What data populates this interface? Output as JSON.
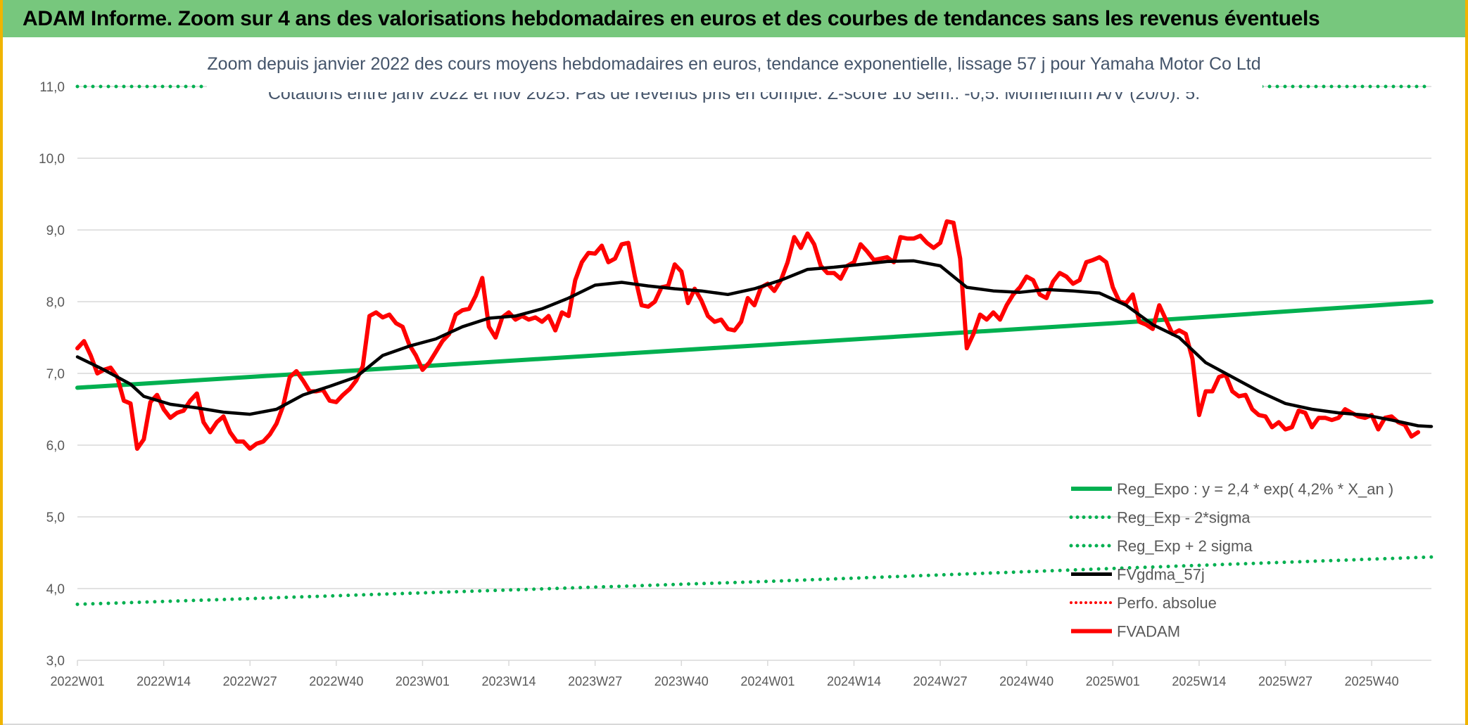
{
  "header": {
    "title": "ADAM Informe. Zoom sur 4 ans des valorisations hebdomadaires en euros et des courbes de tendances sans les revenus éventuels"
  },
  "colors": {
    "header_bg": "#77c77d",
    "trend": "#00b050",
    "smooth": "#000000",
    "price": "#ff0000",
    "title_text": "#44546a",
    "axis_text": "#595959",
    "grid": "#d9d9d9"
  },
  "chart_data": {
    "type": "line",
    "title": "Zoom depuis janvier 2022 des cours moyens hebdomadaires en euros, tendance exponentielle, lissage 57 j pour Yamaha Motor Co Ltd",
    "subtitle": "Cotations entre janv 2022 et nov 2025. Pas de revenus pris en compte. Z-score 10 sem.: -0,5. Momentum A/V (20/0): 5.",
    "xlabel": "",
    "ylabel": "",
    "ylim": [
      3.0,
      11.0
    ],
    "y_ticks": [
      "3,0",
      "4,0",
      "5,0",
      "6,0",
      "7,0",
      "8,0",
      "9,0",
      "10,0",
      "11,0"
    ],
    "x_ticks": [
      {
        "label": "2022W01",
        "week": 0
      },
      {
        "label": "2022W14",
        "week": 13
      },
      {
        "label": "2022W27",
        "week": 26
      },
      {
        "label": "2022W40",
        "week": 39
      },
      {
        "label": "2023W01",
        "week": 52
      },
      {
        "label": "2023W14",
        "week": 65
      },
      {
        "label": "2023W27",
        "week": 78
      },
      {
        "label": "2023W40",
        "week": 91
      },
      {
        "label": "2024W01",
        "week": 104
      },
      {
        "label": "2024W14",
        "week": 117
      },
      {
        "label": "2024W27",
        "week": 130
      },
      {
        "label": "2024W40",
        "week": 143
      },
      {
        "label": "2025W01",
        "week": 156
      },
      {
        "label": "2025W14",
        "week": 169
      },
      {
        "label": "2025W27",
        "week": 182
      },
      {
        "label": "2025W40",
        "week": 195
      }
    ],
    "x_range_weeks": [
      0,
      204
    ],
    "grid": "horizontal",
    "legend_position": "bottom-right",
    "legend": [
      {
        "label": "Reg_Expo : y = 2,4 * exp( 4,2% *  X_an )",
        "style": "solid-green"
      },
      {
        "label": "Reg_Exp - 2*sigma",
        "style": "dotted-green"
      },
      {
        "label": "Reg_Exp + 2 sigma",
        "style": "dotted-green"
      },
      {
        "label": "FVgdma_57j",
        "style": "solid-black"
      },
      {
        "label": "Perfo. absolue",
        "style": "dotted-red"
      },
      {
        "label": "FVADAM",
        "style": "solid-red"
      }
    ],
    "series": [
      {
        "name": "Reg_Expo : y = 2,4 * exp( 4,2% *  X_an )",
        "points": [
          [
            0,
            6.8
          ],
          [
            52,
            7.1
          ],
          [
            104,
            7.4
          ],
          [
            156,
            7.7
          ],
          [
            204,
            8.0
          ]
        ]
      },
      {
        "name": "Reg_Exp - 2*sigma",
        "points": [
          [
            0,
            3.78
          ],
          [
            52,
            3.94
          ],
          [
            104,
            4.1
          ],
          [
            156,
            4.28
          ],
          [
            204,
            4.44
          ]
        ]
      },
      {
        "name": "Reg_Exp + 2 sigma",
        "points": [
          [
            0,
            11.0
          ],
          [
            204,
            11.0
          ]
        ]
      },
      {
        "name": "FVgdma_57j",
        "points": [
          [
            0,
            7.23
          ],
          [
            4,
            7.05
          ],
          [
            8,
            6.85
          ],
          [
            10,
            6.68
          ],
          [
            14,
            6.57
          ],
          [
            18,
            6.52
          ],
          [
            22,
            6.46
          ],
          [
            26,
            6.43
          ],
          [
            30,
            6.5
          ],
          [
            34,
            6.7
          ],
          [
            38,
            6.82
          ],
          [
            42,
            6.95
          ],
          [
            46,
            7.25
          ],
          [
            50,
            7.38
          ],
          [
            54,
            7.48
          ],
          [
            58,
            7.65
          ],
          [
            62,
            7.77
          ],
          [
            66,
            7.8
          ],
          [
            70,
            7.9
          ],
          [
            74,
            8.05
          ],
          [
            78,
            8.23
          ],
          [
            82,
            8.27
          ],
          [
            86,
            8.22
          ],
          [
            90,
            8.18
          ],
          [
            94,
            8.15
          ],
          [
            98,
            8.1
          ],
          [
            102,
            8.18
          ],
          [
            106,
            8.3
          ],
          [
            110,
            8.45
          ],
          [
            114,
            8.48
          ],
          [
            118,
            8.52
          ],
          [
            122,
            8.56
          ],
          [
            126,
            8.57
          ],
          [
            130,
            8.5
          ],
          [
            134,
            8.2
          ],
          [
            138,
            8.15
          ],
          [
            142,
            8.13
          ],
          [
            146,
            8.17
          ],
          [
            150,
            8.15
          ],
          [
            154,
            8.12
          ],
          [
            158,
            7.95
          ],
          [
            162,
            7.68
          ],
          [
            166,
            7.5
          ],
          [
            170,
            7.15
          ],
          [
            174,
            6.95
          ],
          [
            178,
            6.75
          ],
          [
            182,
            6.58
          ],
          [
            186,
            6.5
          ],
          [
            190,
            6.45
          ],
          [
            194,
            6.42
          ],
          [
            198,
            6.35
          ],
          [
            202,
            6.27
          ],
          [
            204,
            6.26
          ]
        ]
      },
      {
        "name": "Perfo. absolue",
        "points": []
      },
      {
        "name": "FVADAM",
        "points": [
          [
            0,
            7.35
          ],
          [
            1,
            7.45
          ],
          [
            2,
            7.25
          ],
          [
            3,
            7.0
          ],
          [
            4,
            7.05
          ],
          [
            5,
            7.08
          ],
          [
            6,
            6.95
          ],
          [
            7,
            6.62
          ],
          [
            8,
            6.58
          ],
          [
            9,
            5.95
          ],
          [
            10,
            6.08
          ],
          [
            11,
            6.6
          ],
          [
            12,
            6.7
          ],
          [
            13,
            6.5
          ],
          [
            14,
            6.38
          ],
          [
            15,
            6.45
          ],
          [
            16,
            6.48
          ],
          [
            17,
            6.62
          ],
          [
            18,
            6.72
          ],
          [
            19,
            6.32
          ],
          [
            20,
            6.18
          ],
          [
            21,
            6.32
          ],
          [
            22,
            6.4
          ],
          [
            23,
            6.18
          ],
          [
            24,
            6.05
          ],
          [
            25,
            6.05
          ],
          [
            26,
            5.95
          ],
          [
            27,
            6.02
          ],
          [
            28,
            6.05
          ],
          [
            29,
            6.15
          ],
          [
            30,
            6.3
          ],
          [
            31,
            6.55
          ],
          [
            32,
            6.95
          ],
          [
            33,
            7.03
          ],
          [
            34,
            6.9
          ],
          [
            35,
            6.75
          ],
          [
            36,
            6.75
          ],
          [
            37,
            6.77
          ],
          [
            38,
            6.62
          ],
          [
            39,
            6.6
          ],
          [
            40,
            6.7
          ],
          [
            41,
            6.78
          ],
          [
            42,
            6.9
          ],
          [
            43,
            7.1
          ],
          [
            44,
            7.8
          ],
          [
            45,
            7.85
          ],
          [
            46,
            7.78
          ],
          [
            47,
            7.82
          ],
          [
            48,
            7.7
          ],
          [
            49,
            7.65
          ],
          [
            50,
            7.4
          ],
          [
            51,
            7.25
          ],
          [
            52,
            7.05
          ],
          [
            53,
            7.15
          ],
          [
            54,
            7.3
          ],
          [
            55,
            7.45
          ],
          [
            56,
            7.55
          ],
          [
            57,
            7.82
          ],
          [
            58,
            7.88
          ],
          [
            59,
            7.9
          ],
          [
            60,
            8.08
          ],
          [
            61,
            8.33
          ],
          [
            62,
            7.65
          ],
          [
            63,
            7.5
          ],
          [
            64,
            7.78
          ],
          [
            65,
            7.85
          ],
          [
            66,
            7.75
          ],
          [
            67,
            7.8
          ],
          [
            68,
            7.75
          ],
          [
            69,
            7.78
          ],
          [
            70,
            7.72
          ],
          [
            71,
            7.8
          ],
          [
            72,
            7.6
          ],
          [
            73,
            7.85
          ],
          [
            74,
            7.8
          ],
          [
            75,
            8.3
          ],
          [
            76,
            8.55
          ],
          [
            77,
            8.68
          ],
          [
            78,
            8.67
          ],
          [
            79,
            8.78
          ],
          [
            80,
            8.55
          ],
          [
            81,
            8.6
          ],
          [
            82,
            8.8
          ],
          [
            83,
            8.82
          ],
          [
            84,
            8.35
          ],
          [
            85,
            7.95
          ],
          [
            86,
            7.93
          ],
          [
            87,
            8.0
          ],
          [
            88,
            8.2
          ],
          [
            89,
            8.22
          ],
          [
            90,
            8.52
          ],
          [
            91,
            8.42
          ],
          [
            92,
            7.98
          ],
          [
            93,
            8.18
          ],
          [
            94,
            8.02
          ],
          [
            95,
            7.8
          ],
          [
            96,
            7.72
          ],
          [
            97,
            7.75
          ],
          [
            98,
            7.62
          ],
          [
            99,
            7.6
          ],
          [
            100,
            7.72
          ],
          [
            101,
            8.05
          ],
          [
            102,
            7.95
          ],
          [
            103,
            8.2
          ],
          [
            104,
            8.25
          ],
          [
            105,
            8.15
          ],
          [
            106,
            8.3
          ],
          [
            107,
            8.55
          ],
          [
            108,
            8.9
          ],
          [
            109,
            8.75
          ],
          [
            110,
            8.95
          ],
          [
            111,
            8.8
          ],
          [
            112,
            8.5
          ],
          [
            113,
            8.4
          ],
          [
            114,
            8.4
          ],
          [
            115,
            8.32
          ],
          [
            116,
            8.5
          ],
          [
            117,
            8.55
          ],
          [
            118,
            8.8
          ],
          [
            119,
            8.7
          ],
          [
            120,
            8.58
          ],
          [
            121,
            8.6
          ],
          [
            122,
            8.62
          ],
          [
            123,
            8.55
          ],
          [
            124,
            8.9
          ],
          [
            125,
            8.88
          ],
          [
            126,
            8.88
          ],
          [
            127,
            8.92
          ],
          [
            128,
            8.82
          ],
          [
            129,
            8.75
          ],
          [
            130,
            8.82
          ],
          [
            131,
            9.12
          ],
          [
            132,
            9.1
          ],
          [
            133,
            8.6
          ],
          [
            134,
            7.35
          ],
          [
            135,
            7.55
          ],
          [
            136,
            7.82
          ],
          [
            137,
            7.75
          ],
          [
            138,
            7.85
          ],
          [
            139,
            7.75
          ],
          [
            140,
            7.95
          ],
          [
            141,
            8.1
          ],
          [
            142,
            8.2
          ],
          [
            143,
            8.35
          ],
          [
            144,
            8.3
          ],
          [
            145,
            8.1
          ],
          [
            146,
            8.05
          ],
          [
            147,
            8.28
          ],
          [
            148,
            8.4
          ],
          [
            149,
            8.35
          ],
          [
            150,
            8.25
          ],
          [
            151,
            8.3
          ],
          [
            152,
            8.55
          ],
          [
            153,
            8.58
          ],
          [
            154,
            8.62
          ],
          [
            155,
            8.55
          ],
          [
            156,
            8.2
          ],
          [
            157,
            8.0
          ],
          [
            158,
            7.98
          ],
          [
            159,
            8.1
          ],
          [
            160,
            7.72
          ],
          [
            161,
            7.68
          ],
          [
            162,
            7.62
          ],
          [
            163,
            7.95
          ],
          [
            164,
            7.75
          ],
          [
            165,
            7.55
          ],
          [
            166,
            7.6
          ],
          [
            167,
            7.55
          ],
          [
            168,
            7.2
          ],
          [
            169,
            6.42
          ],
          [
            170,
            6.75
          ],
          [
            171,
            6.75
          ],
          [
            172,
            6.95
          ],
          [
            173,
            6.98
          ],
          [
            174,
            6.75
          ],
          [
            175,
            6.68
          ],
          [
            176,
            6.7
          ],
          [
            177,
            6.5
          ],
          [
            178,
            6.42
          ],
          [
            179,
            6.4
          ],
          [
            180,
            6.25
          ],
          [
            181,
            6.32
          ],
          [
            182,
            6.22
          ],
          [
            183,
            6.25
          ],
          [
            184,
            6.48
          ],
          [
            185,
            6.45
          ],
          [
            186,
            6.25
          ],
          [
            187,
            6.38
          ],
          [
            188,
            6.38
          ],
          [
            189,
            6.35
          ],
          [
            190,
            6.38
          ],
          [
            191,
            6.5
          ],
          [
            192,
            6.45
          ],
          [
            193,
            6.4
          ],
          [
            194,
            6.38
          ],
          [
            195,
            6.42
          ],
          [
            196,
            6.22
          ],
          [
            197,
            6.38
          ],
          [
            198,
            6.4
          ],
          [
            199,
            6.32
          ],
          [
            200,
            6.28
          ],
          [
            201,
            6.12
          ],
          [
            202,
            6.18
          ]
        ]
      }
    ]
  }
}
